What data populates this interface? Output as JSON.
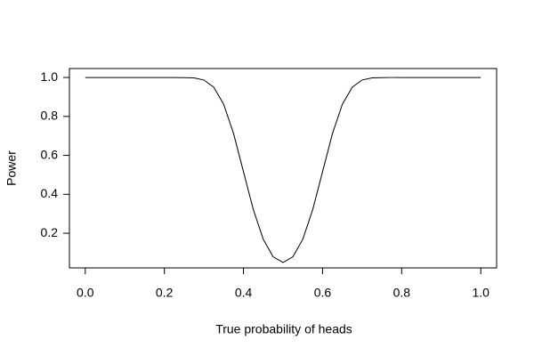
{
  "chart_data": {
    "type": "line",
    "xlabel": "True probability of heads",
    "ylabel": "Power",
    "x": [
      0,
      0.025,
      0.05,
      0.075,
      0.1,
      0.125,
      0.15,
      0.175,
      0.2,
      0.225,
      0.25,
      0.275,
      0.3,
      0.325,
      0.35,
      0.375,
      0.4,
      0.425,
      0.45,
      0.475,
      0.5,
      0.525,
      0.55,
      0.575,
      0.6,
      0.625,
      0.65,
      0.675,
      0.7,
      0.725,
      0.75,
      0.775,
      0.8,
      0.825,
      0.85,
      0.875,
      0.9,
      0.925,
      0.95,
      0.975,
      1
    ],
    "values": [
      1,
      1,
      1,
      1,
      1,
      1,
      1,
      1,
      1,
      1,
      0.999,
      0.998,
      0.987,
      0.95,
      0.862,
      0.712,
      0.516,
      0.321,
      0.169,
      0.079,
      0.05,
      0.079,
      0.169,
      0.321,
      0.516,
      0.712,
      0.862,
      0.95,
      0.987,
      0.998,
      0.999,
      1,
      1,
      1,
      1,
      1,
      1,
      1,
      1,
      1,
      1
    ],
    "color": "#000000",
    "xlim": [
      -0.04,
      1.04
    ],
    "ylim": [
      0.022,
      1.046
    ],
    "xticks": [
      {
        "value": 0,
        "label": "0.0"
      },
      0.2,
      0.4,
      0.6,
      0.8,
      {
        "value": 1,
        "label": "1.0"
      }
    ],
    "yticks": [
      0.2,
      0.4,
      0.6,
      0.8,
      {
        "value": 1,
        "label": "1.0"
      }
    ],
    "grid": false
  }
}
